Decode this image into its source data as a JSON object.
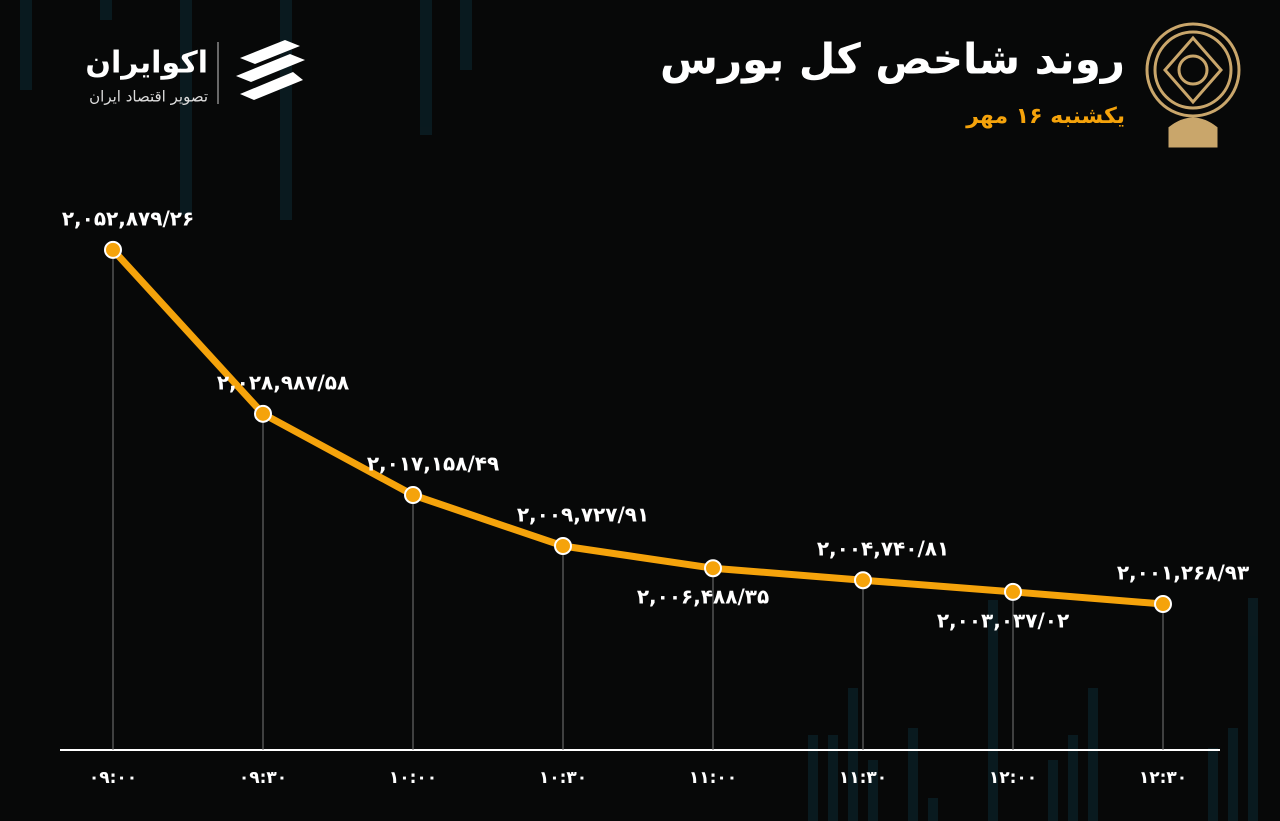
{
  "brand": {
    "name": "اکوایران",
    "tagline": "تصویر اقتصاد ایران"
  },
  "chart_data": {
    "type": "line",
    "title": "روند شاخص کل بورس",
    "subtitle": "یکشنبه ۱۶ مهر",
    "categories": [
      "۰۹:۰۰",
      "۰۹:۳۰",
      "۱۰:۰۰",
      "۱۰:۳۰",
      "۱۱:۰۰",
      "۱۱:۳۰",
      "۱۲:۰۰",
      "۱۲:۳۰"
    ],
    "values": [
      2052879.26,
      2028987.58,
      2017158.49,
      2009727.91,
      2006488.35,
      2004740.81,
      2003037.02,
      2001268.93
    ],
    "value_labels": [
      "۲,۰۵۲,۸۷۹/۲۶",
      "۲,۰۲۸,۹۸۷/۵۸",
      "۲,۰۱۷,۱۵۸/۴۹",
      "۲,۰۰۹,۷۲۷/۹۱",
      "۲,۰۰۶,۴۸۸/۳۵",
      "۲,۰۰۴,۷۴۰/۸۱",
      "۲,۰۰۳,۰۳۷/۰۲",
      "۲,۰۰۱,۲۶۸/۹۳"
    ],
    "color": "#f5a30b",
    "ylim": [
      1980000,
      2060000
    ]
  }
}
